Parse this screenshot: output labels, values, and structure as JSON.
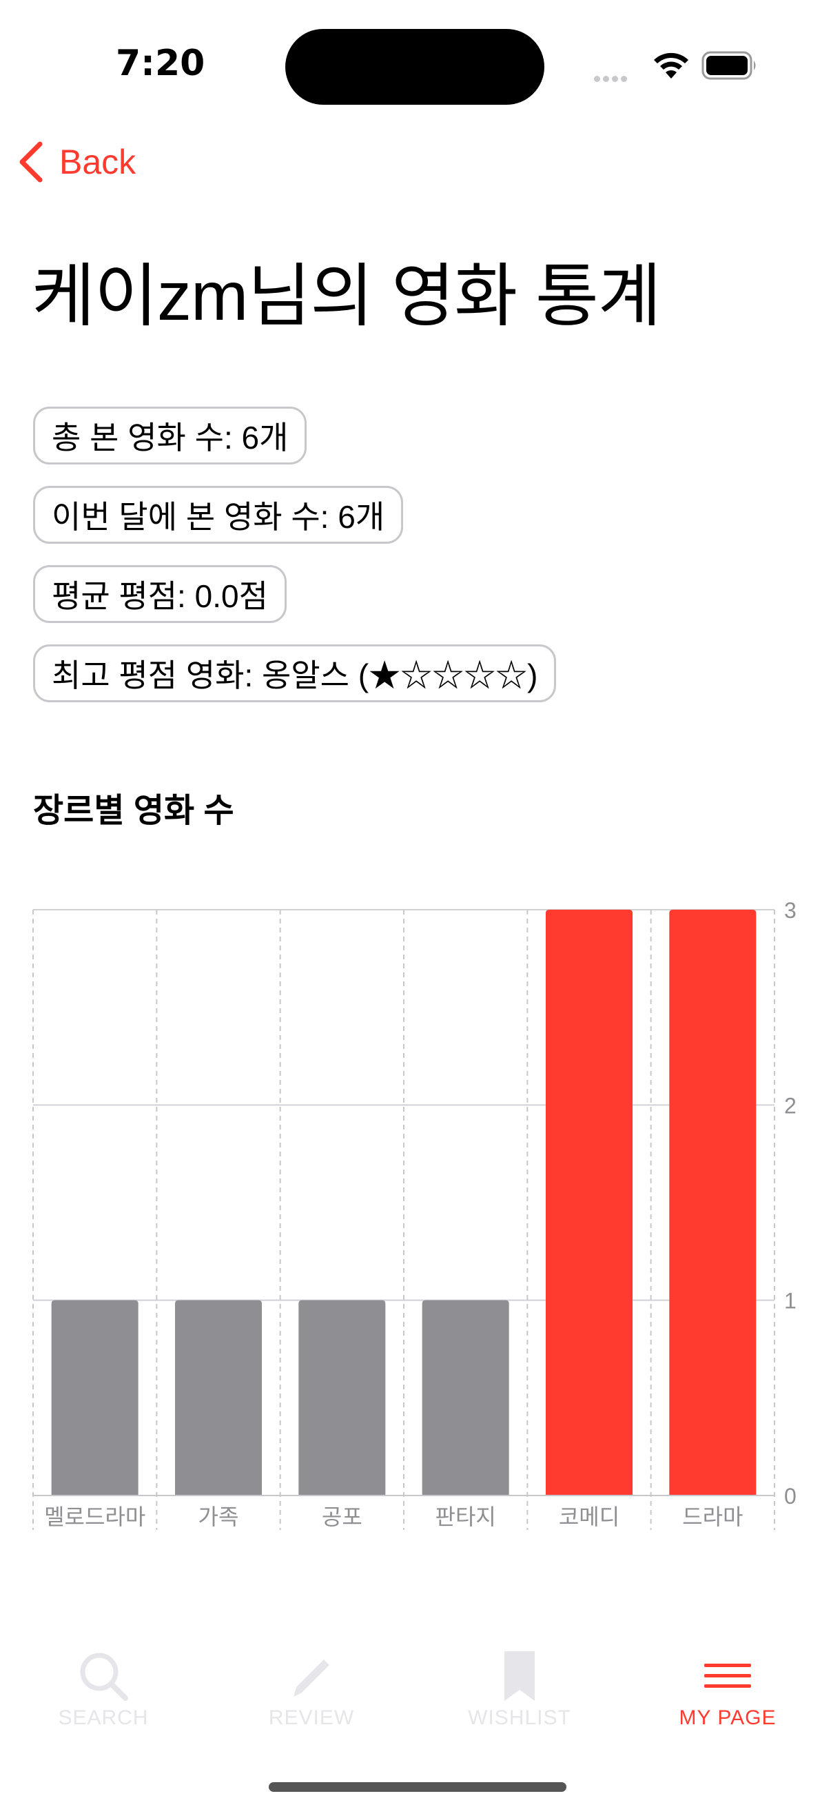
{
  "status_bar": {
    "time": "7:20"
  },
  "nav": {
    "back_label": "Back"
  },
  "page_title": "케이zm님의 영화 통계",
  "stats": [
    {
      "label": "총 본 영화 수: 6개"
    },
    {
      "label": "이번 달에 본 영화 수: 6개"
    },
    {
      "label": "평균 평점: 0.0점"
    },
    {
      "label": "최고 평점 영화:  옹알스 (★☆☆☆☆)"
    }
  ],
  "section_title": "장르별 영화 수",
  "chart_data": {
    "type": "bar",
    "categories": [
      "멜로드라마",
      "가족",
      "공포",
      "판타지",
      "코메디",
      "드라마"
    ],
    "values": [
      1,
      1,
      1,
      1,
      3,
      3
    ],
    "bar_colors": [
      "#8e8e93",
      "#8e8e93",
      "#8e8e93",
      "#8e8e93",
      "#ff3b30",
      "#ff3b30"
    ],
    "y_ticks": [
      "0",
      "1",
      "2",
      "3"
    ],
    "ylim": [
      0,
      3
    ],
    "y_axis_side": "right",
    "grid": true
  },
  "tabs": [
    {
      "label": "SEARCH",
      "icon": "magnifier-icon",
      "active": false
    },
    {
      "label": "REVIEW",
      "icon": "pencil-icon",
      "active": false
    },
    {
      "label": "WISHLIST",
      "icon": "bookmark-icon",
      "active": false
    },
    {
      "label": "MY PAGE",
      "icon": "menu-lines-icon",
      "active": true
    }
  ],
  "colors": {
    "accent": "#ff3b30",
    "inactive_tab": "#e5e5ea",
    "neutral_bar": "#8e8e93"
  }
}
